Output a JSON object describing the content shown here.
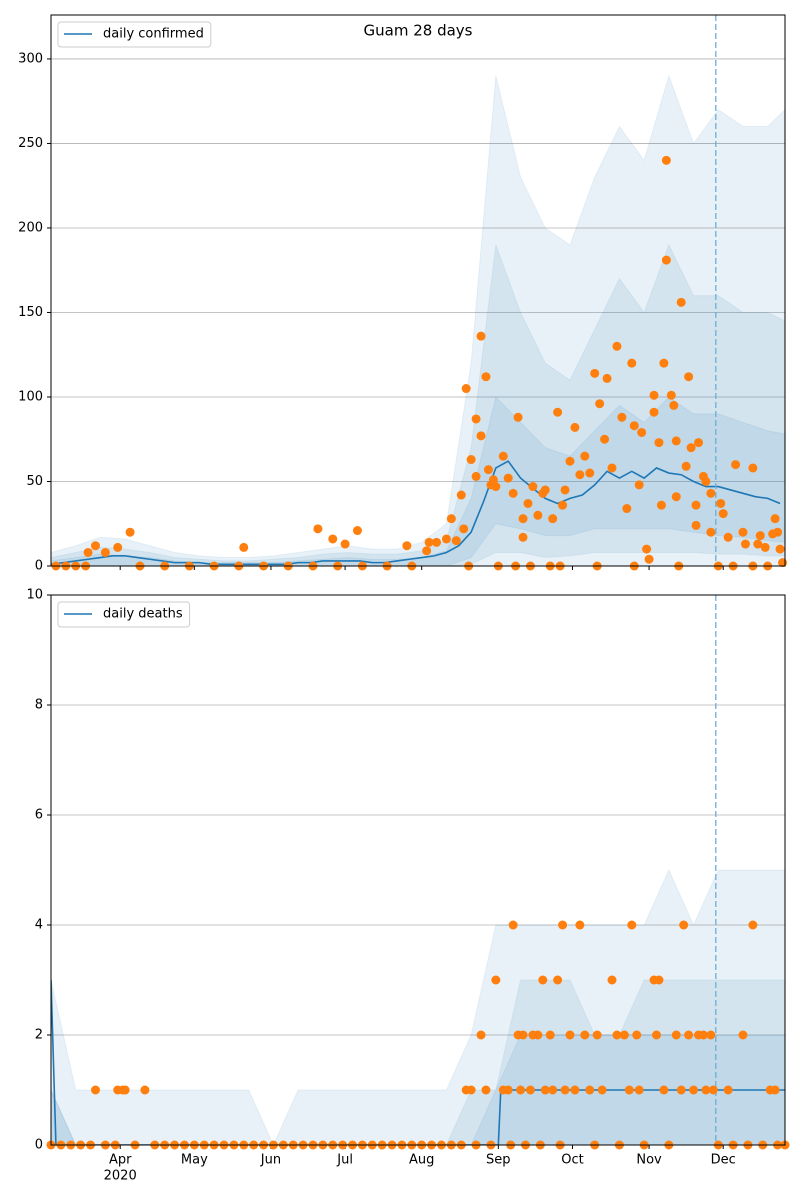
{
  "chart_data": [
    {
      "type": "line",
      "title": "Guam 28 days",
      "xlim": [
        64,
        361
      ],
      "ylim": [
        0,
        326
      ],
      "xticks": [
        92,
        122,
        153,
        183,
        214,
        245,
        275,
        306,
        336
      ],
      "yticks": [
        0,
        50,
        100,
        150,
        200,
        250,
        300
      ],
      "grid": true,
      "legend": "upper left",
      "vline": 333,
      "vline_color": "#6baed6",
      "series": [
        {
          "name": "daily confirmed",
          "color": "#1f77b4",
          "x": [
            64,
            69,
            74,
            79,
            84,
            89,
            94,
            99,
            104,
            109,
            114,
            119,
            124,
            129,
            134,
            139,
            144,
            149,
            154,
            159,
            164,
            169,
            174,
            179,
            184,
            189,
            194,
            199,
            204,
            209,
            214,
            219,
            224,
            229,
            234,
            239,
            244,
            249,
            254,
            259,
            264,
            269,
            274,
            279,
            284,
            289,
            294,
            299,
            304,
            309,
            314,
            319,
            324,
            329,
            334,
            339,
            344,
            349,
            354,
            359
          ],
          "values": [
            1,
            2,
            3,
            4,
            5,
            6,
            6,
            5,
            4,
            3,
            2,
            2,
            2,
            1,
            1,
            1,
            1,
            1,
            1,
            1,
            2,
            2,
            3,
            3,
            3,
            3,
            2,
            2,
            3,
            4,
            5,
            6,
            8,
            12,
            20,
            38,
            58,
            62,
            52,
            46,
            40,
            37,
            40,
            42,
            48,
            56,
            52,
            56,
            52,
            58,
            55,
            54,
            50,
            47,
            47,
            45,
            43,
            41,
            40,
            37
          ]
        }
      ],
      "points": {
        "color": "#ff7f0e",
        "x": [
          66,
          70,
          74,
          78,
          79,
          82,
          86,
          91,
          96,
          100,
          110,
          120,
          130,
          140,
          142,
          150,
          160,
          170,
          172,
          178,
          180,
          183,
          188,
          190,
          200,
          208,
          210,
          216,
          217,
          220,
          224,
          226,
          228,
          230,
          231,
          232,
          233,
          234,
          236,
          236,
          238,
          238,
          240,
          241,
          242,
          243,
          244,
          245,
          247,
          249,
          251,
          252,
          253,
          255,
          255,
          257,
          258,
          259,
          261,
          263,
          264,
          266,
          267,
          269,
          270,
          271,
          272,
          274,
          276,
          278,
          280,
          282,
          284,
          285,
          286,
          288,
          289,
          291,
          293,
          295,
          297,
          299,
          300,
          300,
          302,
          303,
          305,
          306,
          308,
          308,
          310,
          311,
          312,
          313,
          313,
          315,
          316,
          317,
          317,
          318,
          319,
          321,
          322,
          323,
          325,
          325,
          326,
          328,
          329,
          331,
          331,
          334,
          335,
          336,
          338,
          340,
          341,
          344,
          345,
          348,
          348,
          350,
          351,
          353,
          354,
          356,
          357,
          358,
          359,
          360
        ],
        "values": [
          0,
          0,
          0,
          0,
          8,
          12,
          8,
          11,
          20,
          0,
          0,
          0,
          0,
          0,
          11,
          0,
          0,
          0,
          22,
          16,
          0,
          13,
          21,
          0,
          0,
          12,
          0,
          9,
          14,
          14,
          16,
          28,
          15,
          42,
          22,
          105,
          0,
          63,
          53,
          87,
          77,
          136,
          112,
          57,
          48,
          51,
          47,
          0,
          65,
          52,
          43,
          0,
          88,
          17,
          28,
          37,
          0,
          47,
          30,
          43,
          45,
          0,
          28,
          91,
          0,
          36,
          45,
          62,
          82,
          54,
          65,
          55,
          114,
          0,
          96,
          75,
          111,
          58,
          130,
          88,
          34,
          120,
          83,
          0,
          48,
          79,
          10,
          4,
          91,
          101,
          73,
          36,
          120,
          240,
          181,
          101,
          95,
          74,
          41,
          0,
          156,
          59,
          112,
          70,
          36,
          24,
          73,
          53,
          50,
          43,
          20,
          0,
          37,
          31,
          17,
          0,
          60,
          20,
          13,
          58,
          0,
          13,
          18,
          11,
          0,
          19,
          28,
          20,
          10,
          2
        ]
      },
      "bands": {
        "color": "#1f77b4",
        "x": [
          64,
          74,
          84,
          94,
          104,
          114,
          124,
          134,
          144,
          154,
          164,
          174,
          184,
          194,
          204,
          214,
          224,
          234,
          244,
          254,
          264,
          274,
          284,
          294,
          304,
          314,
          324,
          334,
          344,
          354,
          361
        ],
        "upper": [
          [
            8,
            12,
            17,
            16,
            12,
            8,
            6,
            5,
            5,
            6,
            8,
            10,
            12,
            10,
            10,
            14,
            25,
            120,
            290,
            230,
            200,
            190,
            230,
            260,
            240,
            290,
            250,
            270,
            260,
            260,
            270
          ],
          [
            5,
            8,
            11,
            10,
            8,
            5,
            4,
            3,
            3,
            4,
            5,
            7,
            8,
            7,
            7,
            9,
            15,
            70,
            190,
            150,
            120,
            110,
            140,
            170,
            150,
            190,
            160,
            160,
            150,
            150,
            145
          ],
          [
            3,
            5,
            7,
            6,
            5,
            3,
            2,
            2,
            2,
            2,
            3,
            4,
            5,
            4,
            4,
            5,
            9,
            40,
            100,
            85,
            70,
            65,
            80,
            95,
            85,
            100,
            90,
            90,
            85,
            80,
            78
          ]
        ],
        "lower": [
          [
            0,
            0,
            0,
            0,
            0,
            0,
            0,
            0,
            0,
            0,
            0,
            0,
            0,
            0,
            0,
            0,
            0,
            0,
            0,
            0,
            0,
            0,
            0,
            0,
            0,
            0,
            0,
            0,
            0,
            0,
            0
          ],
          [
            0,
            0,
            0,
            0,
            0,
            0,
            0,
            0,
            0,
            0,
            0,
            0,
            0,
            0,
            0,
            0,
            0,
            1,
            8,
            8,
            5,
            6,
            8,
            8,
            8,
            8,
            8,
            7,
            7,
            6,
            6
          ],
          [
            0,
            0,
            0,
            0,
            0,
            0,
            0,
            0,
            0,
            0,
            0,
            0,
            0,
            0,
            0,
            0,
            0,
            5,
            25,
            22,
            18,
            18,
            22,
            22,
            22,
            22,
            20,
            18,
            17,
            15,
            14
          ]
        ]
      }
    },
    {
      "type": "line",
      "xlim": [
        64,
        361
      ],
      "ylim": [
        0,
        10
      ],
      "xticks": [
        {
          "value": 92,
          "label": "Apr"
        },
        {
          "value": 122,
          "label": "May"
        },
        {
          "value": 153,
          "label": "Jun"
        },
        {
          "value": 183,
          "label": "Jul"
        },
        {
          "value": 214,
          "label": "Aug"
        },
        {
          "value": 245,
          "label": "Sep"
        },
        {
          "value": 275,
          "label": "Oct"
        },
        {
          "value": 306,
          "label": "Nov"
        },
        {
          "value": 336,
          "label": "Dec"
        }
      ],
      "xtick_year": "2020",
      "yticks": [
        0,
        2,
        4,
        6,
        8,
        10
      ],
      "grid": true,
      "legend": "upper left",
      "vline": 333,
      "vline_color": "#6baed6",
      "series": [
        {
          "name": "daily deaths",
          "color": "#1f77b4",
          "x": [
            64,
            66,
            245,
            246,
            361
          ],
          "values": [
            3,
            0,
            0,
            1,
            1
          ]
        }
      ],
      "points": {
        "color": "#ff7f0e",
        "x": [
          64,
          68,
          72,
          76,
          80,
          82,
          86,
          90,
          91,
          93,
          94,
          98,
          102,
          106,
          110,
          114,
          118,
          122,
          126,
          130,
          134,
          138,
          142,
          146,
          150,
          154,
          158,
          162,
          166,
          170,
          174,
          178,
          182,
          186,
          190,
          194,
          198,
          202,
          206,
          210,
          214,
          218,
          222,
          226,
          230,
          232,
          234,
          236,
          238,
          240,
          242,
          244,
          247,
          249,
          250,
          251,
          253,
          254,
          255,
          256,
          258,
          259,
          261,
          262,
          263,
          264,
          266,
          267,
          269,
          270,
          271,
          272,
          274,
          276,
          278,
          280,
          282,
          284,
          285,
          287,
          291,
          293,
          294,
          296,
          298,
          299,
          301,
          302,
          304,
          308,
          309,
          310,
          312,
          314,
          317,
          319,
          320,
          322,
          324,
          326,
          328,
          329,
          331,
          332,
          334,
          338,
          340,
          344,
          346,
          348,
          352,
          355,
          357,
          358,
          361
        ],
        "values": [
          0,
          0,
          0,
          0,
          0,
          1,
          0,
          0,
          1,
          1,
          1,
          0,
          1,
          0,
          0,
          0,
          0,
          0,
          0,
          0,
          0,
          0,
          0,
          0,
          0,
          0,
          0,
          0,
          0,
          0,
          0,
          0,
          0,
          0,
          0,
          0,
          0,
          0,
          0,
          0,
          0,
          0,
          0,
          0,
          0,
          1,
          1,
          0,
          2,
          1,
          0,
          3,
          1,
          1,
          0,
          4,
          2,
          1,
          2,
          0,
          1,
          2,
          2,
          0,
          3,
          1,
          2,
          1,
          3,
          0,
          4,
          1,
          2,
          1,
          4,
          2,
          1,
          0,
          2,
          1,
          3,
          2,
          0,
          2,
          1,
          4,
          2,
          1,
          0,
          3,
          2,
          3,
          1,
          0,
          2,
          1,
          4,
          2,
          1,
          2,
          2,
          1,
          2,
          1,
          0,
          1,
          0,
          2,
          0,
          4,
          0,
          1,
          1,
          0,
          0
        ]
      },
      "bands": {
        "color": "#1f77b4",
        "x": [
          64,
          74,
          84,
          94,
          104,
          114,
          124,
          134,
          144,
          154,
          164,
          174,
          184,
          194,
          204,
          214,
          224,
          234,
          244,
          254,
          264,
          274,
          284,
          294,
          304,
          314,
          324,
          334,
          344,
          354,
          361
        ],
        "upper": [
          [
            3,
            1,
            1,
            1,
            1,
            1,
            1,
            1,
            1,
            0,
            1,
            1,
            1,
            1,
            1,
            1,
            1,
            2,
            4,
            4,
            4,
            4,
            4,
            4,
            4,
            5,
            4,
            5,
            5,
            5,
            5
          ],
          [
            1,
            0,
            0,
            0,
            0,
            0,
            0,
            0,
            0,
            0,
            0,
            0,
            0,
            0,
            0,
            0,
            0,
            1,
            1,
            3,
            3,
            3,
            2,
            2,
            3,
            3,
            3,
            3,
            3,
            3,
            3
          ],
          [
            1,
            0,
            0,
            0,
            0,
            0,
            0,
            0,
            0,
            0,
            0,
            0,
            0,
            0,
            0,
            0,
            0,
            0,
            1,
            2,
            2,
            2,
            2,
            2,
            2,
            2,
            2,
            2,
            2,
            2,
            2
          ]
        ]
      }
    }
  ]
}
